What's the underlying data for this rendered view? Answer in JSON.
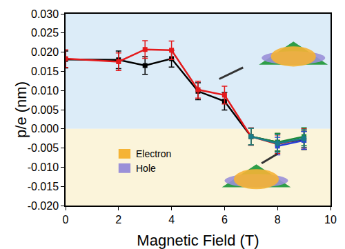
{
  "chart_data": {
    "type": "line",
    "x_label": "Magnetic Field (T)",
    "y_label": "p/e (nm)",
    "xlim": [
      0,
      10
    ],
    "xticks": [
      0,
      2,
      4,
      6,
      8,
      10
    ],
    "ylim": [
      -0.02,
      0.03
    ],
    "yticks": [
      {
        "value": -0.02,
        "label": "-0.020"
      },
      {
        "value": -0.015,
        "label": "-0.015"
      },
      {
        "value": -0.01,
        "label": "-0.010"
      },
      {
        "value": -0.005,
        "label": "-0.005"
      },
      {
        "value": 0,
        "label": "0.000"
      },
      {
        "value": 0.005,
        "label": "0.005"
      },
      {
        "value": 0.01,
        "label": "0.010"
      },
      {
        "value": 0.015,
        "label": "0.015"
      },
      {
        "value": 0.02,
        "label": "0.020"
      },
      {
        "value": 0.025,
        "label": "0.025"
      },
      {
        "value": 0.03,
        "label": "0.030"
      }
    ],
    "grid": false,
    "bands": [
      {
        "y0": 0,
        "y1": 0.03,
        "color": "#dcecf8"
      },
      {
        "y0": -0.02,
        "y1": 0,
        "color": "#fbf4da"
      }
    ],
    "series": [
      {
        "color": "#000000",
        "marker": "square",
        "x": [
          0,
          2,
          3,
          4,
          5,
          6,
          7,
          8,
          9
        ],
        "values": [
          0.0181,
          0.018,
          0.0165,
          0.0183,
          0.0098,
          0.0072,
          -0.002,
          -0.0035,
          -0.003
        ],
        "errors": [
          0.0022,
          0.0023,
          0.0023,
          0.0022,
          0.0022,
          0.0023,
          0.0022,
          0.0023,
          0.0024
        ]
      },
      {
        "color": "#e41a1c",
        "marker": "square",
        "x": [
          0,
          2,
          3,
          4,
          5,
          6,
          7,
          8,
          9
        ],
        "values": [
          0.0183,
          0.0175,
          0.0207,
          0.0205,
          0.0102,
          0.0088,
          -0.002,
          -0.004,
          -0.0025
        ],
        "errors": [
          0.0023,
          0.0023,
          0.0023,
          0.0024,
          0.0022,
          0.0023,
          0.0023,
          0.0024,
          0.0025
        ]
      },
      {
        "color": "#1a8a3a",
        "marker": "square",
        "x": [
          7,
          8,
          9
        ],
        "values": [
          -0.002,
          -0.0035,
          -0.002
        ],
        "errors": [
          0.0022,
          0.0023,
          0.0023
        ]
      },
      {
        "color": "#2a3fd6",
        "marker": "square",
        "x": [
          8,
          9
        ],
        "values": [
          -0.0045,
          -0.003
        ],
        "errors": [
          0.0023,
          0.0023
        ]
      },
      {
        "color": "#1a7a8a",
        "marker": "square",
        "x": [
          7,
          8,
          9
        ],
        "values": [
          -0.002,
          -0.0038,
          -0.0025
        ],
        "errors": [
          0.0022,
          0.0023,
          0.0023
        ]
      }
    ],
    "annotations": [
      {
        "text": "Electron",
        "color": "#f5b335"
      },
      {
        "text": "Hole",
        "color": "#9a90d8"
      }
    ]
  }
}
